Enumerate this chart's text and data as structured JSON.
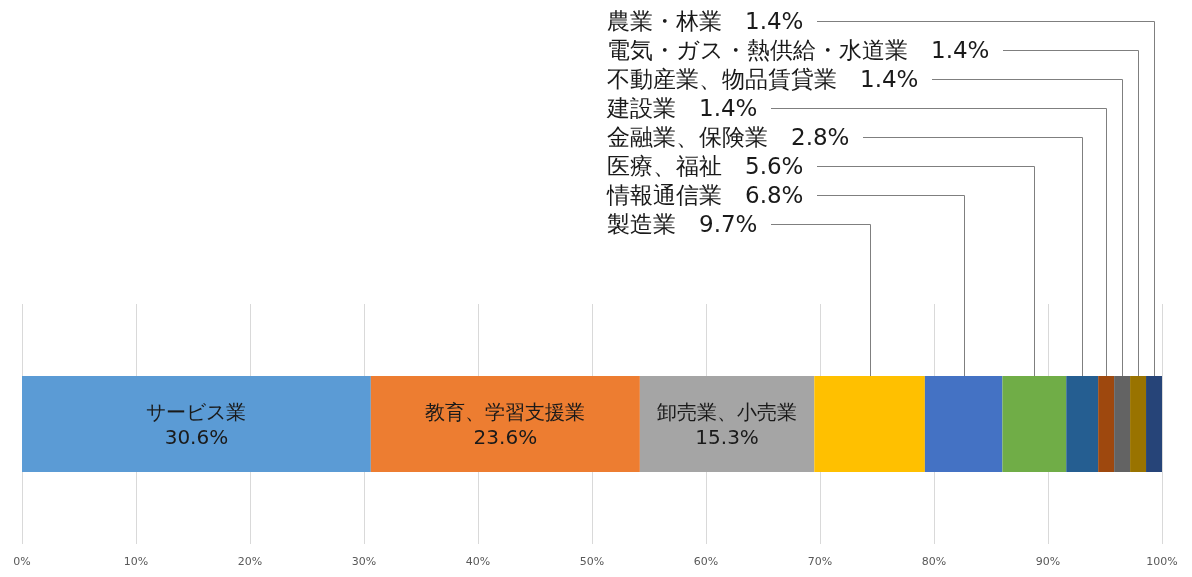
{
  "chart_data": {
    "type": "bar",
    "orientation": "horizontal",
    "stacked": true,
    "categories": [
      null
    ],
    "series": [
      {
        "name": "サービス業",
        "color": "#5b9bd5",
        "values": [
          30.6
        ],
        "value_labels": [
          "30.6%"
        ]
      },
      {
        "name": "教育、学習支援業",
        "color": "#ed7d31",
        "values": [
          23.6
        ],
        "value_labels": [
          "23.6%"
        ]
      },
      {
        "name": "卸売業、小売業",
        "color": "#a5a5a5",
        "values": [
          15.3
        ],
        "value_labels": [
          "15.3%"
        ]
      },
      {
        "name": "製造業",
        "color": "#ffc000",
        "values": [
          9.7
        ],
        "value_labels": [
          "9.7%"
        ]
      },
      {
        "name": "情報通信業",
        "color": "#4472c4",
        "values": [
          6.8
        ],
        "value_labels": [
          "6.8%"
        ]
      },
      {
        "name": "医療、福祉",
        "color": "#70ad47",
        "values": [
          5.6
        ],
        "value_labels": [
          "5.6%"
        ]
      },
      {
        "name": "金融業、保険業",
        "color": "#255e91",
        "values": [
          2.8
        ],
        "value_labels": [
          "2.8%"
        ]
      },
      {
        "name": "建設業",
        "color": "#9e480e",
        "values": [
          1.4
        ],
        "value_labels": [
          "1.4%"
        ]
      },
      {
        "name": "不動産業、物品賃貸業",
        "color": "#636363",
        "values": [
          1.4
        ],
        "value_labels": [
          "1.4%"
        ]
      },
      {
        "name": "電気・ガス・熱供給・水道業",
        "color": "#997300",
        "values": [
          1.4
        ],
        "value_labels": [
          "1.4%"
        ]
      },
      {
        "name": "農業・林業",
        "color": "#264478",
        "values": [
          1.4
        ],
        "value_labels": [
          "1.4%"
        ]
      }
    ],
    "xlim": [
      0,
      100
    ],
    "xticks": [
      {
        "value": 0,
        "label": "0%"
      },
      {
        "value": 10,
        "label": "10%"
      },
      {
        "value": 20,
        "label": "20%"
      },
      {
        "value": 30,
        "label": "30%"
      },
      {
        "value": 40,
        "label": "40%"
      },
      {
        "value": 50,
        "label": "50%"
      },
      {
        "value": 60,
        "label": "60%"
      },
      {
        "value": 70,
        "label": "70%"
      },
      {
        "value": 80,
        "label": "80%"
      },
      {
        "value": 90,
        "label": "90%"
      },
      {
        "value": 100,
        "label": "100%"
      }
    ],
    "grid": "x",
    "legend": false
  }
}
